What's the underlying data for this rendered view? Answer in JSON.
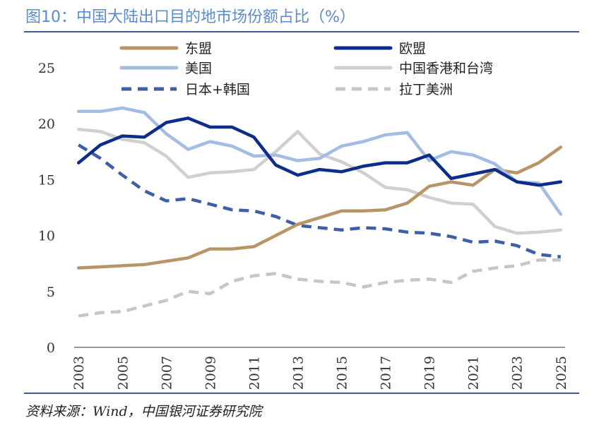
{
  "figure": {
    "title": "图10：中国大陆出口目的地市场份额占比（%）",
    "source": "资料来源：Wind，中国银河证券研究院"
  },
  "chart_data": {
    "type": "line",
    "title": "",
    "xlabel": "",
    "ylabel": "",
    "ylim": [
      0,
      25
    ],
    "yticks": [
      "0",
      "5",
      "10",
      "15",
      "20",
      "25"
    ],
    "xticks": [
      "2003",
      "2005",
      "2007",
      "2009",
      "2011",
      "2013",
      "2015",
      "2017",
      "2019",
      "2021",
      "2023",
      "2025"
    ],
    "x": [
      2003,
      2004,
      2005,
      2006,
      2007,
      2008,
      2009,
      2010,
      2011,
      2012,
      2013,
      2014,
      2015,
      2016,
      2017,
      2018,
      2019,
      2020,
      2021,
      2022,
      2023,
      2024,
      2025
    ],
    "grid": false,
    "legend_position": "top",
    "series": [
      {
        "name": "东盟",
        "color": "#b99466",
        "dash": "solid",
        "values": [
          7.1,
          7.2,
          7.3,
          7.4,
          7.7,
          8.0,
          8.8,
          8.8,
          9.0,
          10.0,
          11.0,
          11.6,
          12.2,
          12.2,
          12.3,
          12.9,
          14.4,
          14.8,
          14.5,
          15.9,
          15.6,
          16.5,
          17.9
        ]
      },
      {
        "name": "欧盟",
        "color": "#0d2d8a",
        "dash": "solid",
        "values": [
          16.5,
          18.1,
          18.9,
          18.8,
          20.1,
          20.5,
          19.7,
          19.7,
          18.8,
          16.3,
          15.4,
          15.9,
          15.7,
          16.2,
          16.5,
          16.5,
          17.2,
          15.1,
          15.5,
          15.9,
          14.8,
          14.5,
          14.8
        ]
      },
      {
        "name": "美国",
        "color": "#a4bce3",
        "dash": "solid",
        "values": [
          21.1,
          21.1,
          21.4,
          21.0,
          19.1,
          17.7,
          18.4,
          18.0,
          17.1,
          17.2,
          16.7,
          16.9,
          18.0,
          18.4,
          19.0,
          19.2,
          16.7,
          17.5,
          17.2,
          16.4,
          14.8,
          14.7,
          11.9
        ]
      },
      {
        "name": "中国香港和台湾",
        "color": "#d0d0d0",
        "dash": "solid",
        "values": [
          19.5,
          19.3,
          18.6,
          18.3,
          17.1,
          15.2,
          15.6,
          15.7,
          15.9,
          17.5,
          19.3,
          17.3,
          16.6,
          15.6,
          14.3,
          14.1,
          13.4,
          12.9,
          12.8,
          10.8,
          10.2,
          10.3,
          10.5
        ]
      },
      {
        "name": "日本+韩国",
        "color": "#3d5fa8",
        "dash": "dashed",
        "values": [
          18.1,
          16.9,
          15.4,
          14.0,
          13.1,
          13.3,
          12.8,
          12.3,
          12.2,
          11.7,
          10.9,
          10.7,
          10.5,
          10.7,
          10.6,
          10.3,
          10.2,
          9.9,
          9.4,
          9.5,
          9.1,
          8.3,
          8.1
        ]
      },
      {
        "name": "拉丁美洲",
        "color": "#c6c6c6",
        "dash": "dashed",
        "values": [
          2.8,
          3.1,
          3.2,
          3.7,
          4.2,
          5.0,
          4.8,
          5.9,
          6.4,
          6.6,
          6.1,
          5.9,
          5.8,
          5.4,
          5.8,
          6.0,
          6.1,
          5.8,
          6.8,
          7.1,
          7.3,
          7.8,
          7.8
        ]
      }
    ]
  }
}
